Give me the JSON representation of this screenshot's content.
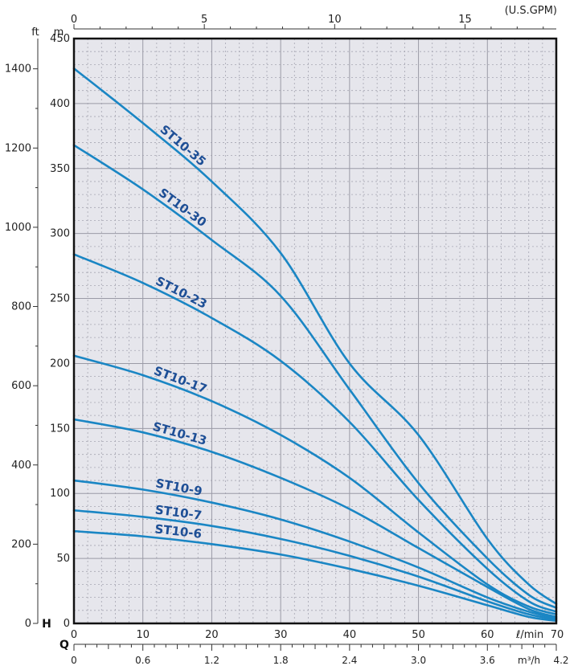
{
  "chart_data": {
    "type": "line",
    "title": "",
    "plot_bg": "#e6e6ec",
    "curve_color": "#1a86c4",
    "label_color": "#1e4f96",
    "x": {
      "label": "ℓ/min",
      "range": [
        0,
        70
      ],
      "ticks": [
        0,
        10,
        20,
        30,
        40,
        50,
        60,
        70
      ]
    },
    "x_top": {
      "unit": "(U.S.GPM)",
      "range": [
        0,
        18.5
      ],
      "ticks": [
        0,
        5,
        10,
        15
      ]
    },
    "x_bottom_q": {
      "prefix": "Q",
      "unit": "m³/h",
      "ticks": [
        "0",
        "0.6",
        "1.2",
        "1.8",
        "2.4",
        "3.0",
        "3.6",
        "4.2"
      ]
    },
    "y": {
      "unit": "m",
      "range": [
        0,
        450
      ],
      "ticks": [
        0,
        50,
        100,
        150,
        200,
        250,
        300,
        350,
        400,
        450
      ]
    },
    "y_left": {
      "unit": "ft",
      "ticks": [
        0,
        200,
        400,
        600,
        800,
        1000,
        1200,
        1400
      ]
    },
    "h_label": "H",
    "grid": true,
    "series": [
      {
        "name": "ST10-35",
        "x": [
          0,
          10,
          20,
          30,
          40,
          50,
          60,
          66,
          70
        ],
        "y": [
          427,
          385,
          340,
          285,
          200,
          145,
          65,
          30,
          15
        ]
      },
      {
        "name": "ST10-30",
        "x": [
          0,
          10,
          20,
          30,
          40,
          50,
          60,
          66,
          70
        ],
        "y": [
          368,
          334,
          295,
          252,
          180,
          108,
          50,
          22,
          12
        ]
      },
      {
        "name": "ST10-23",
        "x": [
          0,
          10,
          20,
          30,
          40,
          50,
          60,
          66,
          70
        ],
        "y": [
          284,
          262,
          235,
          202,
          155,
          95,
          42,
          17,
          9
        ]
      },
      {
        "name": "ST10-17",
        "x": [
          0,
          10,
          20,
          30,
          40,
          50,
          60,
          66,
          70
        ],
        "y": [
          206,
          191,
          171,
          145,
          112,
          70,
          30,
          13,
          7
        ]
      },
      {
        "name": "ST10-13",
        "x": [
          0,
          10,
          20,
          30,
          40,
          50,
          60,
          66,
          70
        ],
        "y": [
          157,
          147,
          132,
          112,
          88,
          58,
          28,
          11,
          5
        ]
      },
      {
        "name": "ST10-9",
        "x": [
          0,
          10,
          20,
          30,
          40,
          50,
          60,
          66,
          70
        ],
        "y": [
          110,
          103,
          93,
          80,
          63,
          43,
          20,
          9,
          4
        ]
      },
      {
        "name": "ST10-7",
        "x": [
          0,
          10,
          20,
          30,
          40,
          50,
          60,
          66,
          70
        ],
        "y": [
          87,
          82,
          75,
          65,
          52,
          36,
          17,
          7,
          3
        ]
      },
      {
        "name": "ST10-6",
        "x": [
          0,
          10,
          20,
          30,
          40,
          50,
          60,
          66,
          70
        ],
        "y": [
          71,
          67,
          61,
          53,
          42,
          29,
          14,
          5,
          2
        ]
      }
    ]
  }
}
